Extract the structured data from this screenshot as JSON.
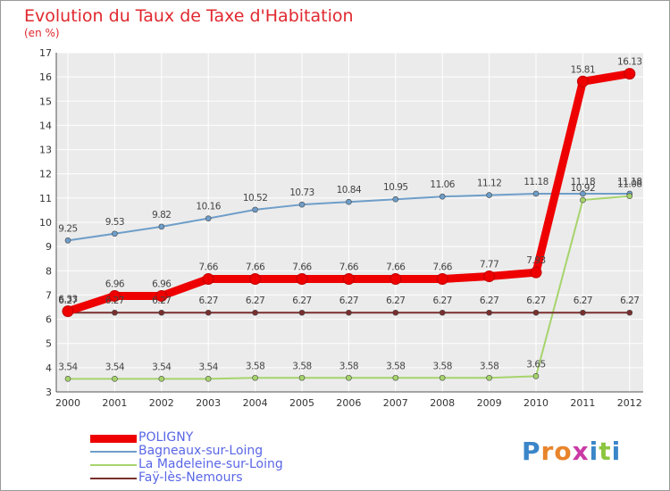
{
  "header": {
    "title": "Evolution du Taux de Taxe d'Habitation",
    "subtitle": "(en %)"
  },
  "chart_data": {
    "type": "line",
    "x": [
      "2000",
      "2001",
      "2002",
      "2003",
      "2004",
      "2005",
      "2006",
      "2007",
      "2008",
      "2009",
      "2010",
      "2011",
      "2012"
    ],
    "ylim": [
      3,
      17
    ],
    "yticks": [
      "3",
      "4",
      "5",
      "6",
      "7",
      "8",
      "9",
      "10",
      "11",
      "12",
      "13",
      "14",
      "15",
      "16",
      "17"
    ],
    "grid": true,
    "series": [
      {
        "name": "POLIGNY",
        "color": "#ee0000",
        "values": [
          6.33,
          6.96,
          6.96,
          7.66,
          7.66,
          7.66,
          7.66,
          7.66,
          7.66,
          7.77,
          7.93,
          15.81,
          16.13
        ],
        "labels": [
          "6.33",
          "6.96",
          "6.96",
          "7.66",
          "7.66",
          "7.66",
          "7.66",
          "7.66",
          "7.66",
          "7.77",
          "7.93",
          "15.81",
          "16.13"
        ]
      },
      {
        "name": "Bagneaux-sur-Loing",
        "color": "#6e9ec9",
        "values": [
          9.25,
          9.53,
          9.82,
          10.16,
          10.52,
          10.73,
          10.84,
          10.95,
          11.06,
          11.12,
          11.18,
          11.18,
          11.18
        ],
        "labels": [
          "9.25",
          "9.53",
          "9.82",
          "10.16",
          "10.52",
          "10.73",
          "10.84",
          "10.95",
          "11.06",
          "11.12",
          "11.18",
          "11.18",
          "11.18"
        ]
      },
      {
        "name": "La Madeleine-sur-Loing",
        "color": "#a6d46c",
        "values": [
          3.54,
          3.54,
          3.54,
          3.54,
          3.58,
          3.58,
          3.58,
          3.58,
          3.58,
          3.58,
          3.65,
          10.92,
          11.08
        ],
        "labels": [
          "3.54",
          "3.54",
          "3.54",
          "3.54",
          "3.58",
          "3.58",
          "3.58",
          "3.58",
          "3.58",
          "3.58",
          "3.65",
          "10.92",
          "11.08"
        ]
      },
      {
        "name": "Faÿ-lès-Nemours",
        "color": "#7a2e2e",
        "values": [
          6.27,
          6.27,
          6.27,
          6.27,
          6.27,
          6.27,
          6.27,
          6.27,
          6.27,
          6.27,
          6.27,
          6.27,
          6.27
        ],
        "labels": [
          "6.27",
          "6.27",
          "6.27",
          "6.27",
          "6.27",
          "6.27",
          "6.27",
          "6.27",
          "6.27",
          "6.27",
          "6.27",
          "6.27",
          "6.27"
        ]
      }
    ]
  },
  "legend": {
    "placement": "bottom-left",
    "items": [
      {
        "label": "POLIGNY",
        "color": "#ee0000"
      },
      {
        "label": "Bagneaux-sur-Loing",
        "color": "#6e9ec9"
      },
      {
        "label": "La Madeleine-sur-Loing",
        "color": "#a6d46c"
      },
      {
        "label": "Faÿ-lès-Nemours",
        "color": "#7a2e2e"
      }
    ]
  },
  "brand": {
    "letters": [
      "P",
      "r",
      "o",
      "x",
      "i",
      "t",
      "i"
    ],
    "colors": [
      "#3a86c8",
      "#e8852b",
      "#e8852b",
      "#c93aa5",
      "#3a86c8",
      "#8cc63f",
      "#3a86c8"
    ]
  }
}
